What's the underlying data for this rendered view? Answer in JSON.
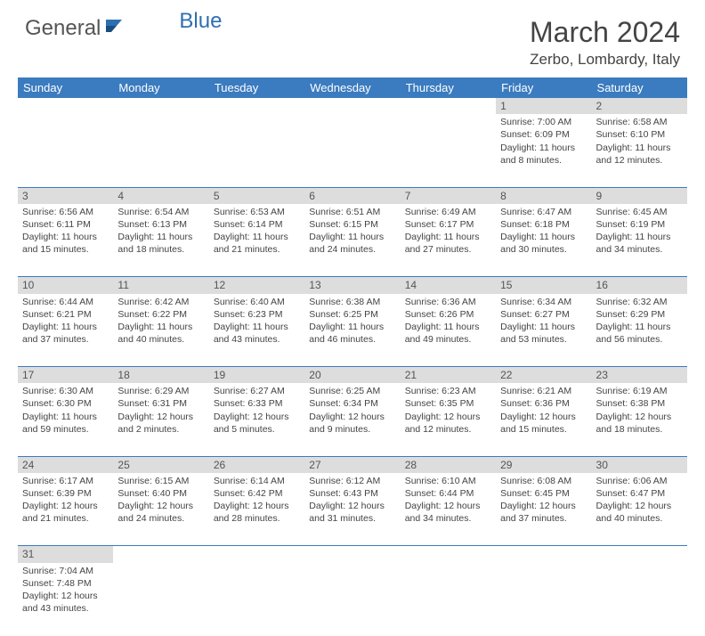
{
  "brand": {
    "name1": "General",
    "name2": "Blue"
  },
  "title": "March 2024",
  "location": "Zerbo, Lombardy, Italy",
  "colors": {
    "header_bg": "#3b7bbf",
    "header_text": "#ffffff",
    "daynum_bg": "#dddddd",
    "border": "#3b7bbf",
    "text": "#444444"
  },
  "weekdays": [
    "Sunday",
    "Monday",
    "Tuesday",
    "Wednesday",
    "Thursday",
    "Friday",
    "Saturday"
  ],
  "cells": {
    "1": {
      "sunrise": "7:00 AM",
      "sunset": "6:09 PM",
      "daylight": "11 hours and 8 minutes."
    },
    "2": {
      "sunrise": "6:58 AM",
      "sunset": "6:10 PM",
      "daylight": "11 hours and 12 minutes."
    },
    "3": {
      "sunrise": "6:56 AM",
      "sunset": "6:11 PM",
      "daylight": "11 hours and 15 minutes."
    },
    "4": {
      "sunrise": "6:54 AM",
      "sunset": "6:13 PM",
      "daylight": "11 hours and 18 minutes."
    },
    "5": {
      "sunrise": "6:53 AM",
      "sunset": "6:14 PM",
      "daylight": "11 hours and 21 minutes."
    },
    "6": {
      "sunrise": "6:51 AM",
      "sunset": "6:15 PM",
      "daylight": "11 hours and 24 minutes."
    },
    "7": {
      "sunrise": "6:49 AM",
      "sunset": "6:17 PM",
      "daylight": "11 hours and 27 minutes."
    },
    "8": {
      "sunrise": "6:47 AM",
      "sunset": "6:18 PM",
      "daylight": "11 hours and 30 minutes."
    },
    "9": {
      "sunrise": "6:45 AM",
      "sunset": "6:19 PM",
      "daylight": "11 hours and 34 minutes."
    },
    "10": {
      "sunrise": "6:44 AM",
      "sunset": "6:21 PM",
      "daylight": "11 hours and 37 minutes."
    },
    "11": {
      "sunrise": "6:42 AM",
      "sunset": "6:22 PM",
      "daylight": "11 hours and 40 minutes."
    },
    "12": {
      "sunrise": "6:40 AM",
      "sunset": "6:23 PM",
      "daylight": "11 hours and 43 minutes."
    },
    "13": {
      "sunrise": "6:38 AM",
      "sunset": "6:25 PM",
      "daylight": "11 hours and 46 minutes."
    },
    "14": {
      "sunrise": "6:36 AM",
      "sunset": "6:26 PM",
      "daylight": "11 hours and 49 minutes."
    },
    "15": {
      "sunrise": "6:34 AM",
      "sunset": "6:27 PM",
      "daylight": "11 hours and 53 minutes."
    },
    "16": {
      "sunrise": "6:32 AM",
      "sunset": "6:29 PM",
      "daylight": "11 hours and 56 minutes."
    },
    "17": {
      "sunrise": "6:30 AM",
      "sunset": "6:30 PM",
      "daylight": "11 hours and 59 minutes."
    },
    "18": {
      "sunrise": "6:29 AM",
      "sunset": "6:31 PM",
      "daylight": "12 hours and 2 minutes."
    },
    "19": {
      "sunrise": "6:27 AM",
      "sunset": "6:33 PM",
      "daylight": "12 hours and 5 minutes."
    },
    "20": {
      "sunrise": "6:25 AM",
      "sunset": "6:34 PM",
      "daylight": "12 hours and 9 minutes."
    },
    "21": {
      "sunrise": "6:23 AM",
      "sunset": "6:35 PM",
      "daylight": "12 hours and 12 minutes."
    },
    "22": {
      "sunrise": "6:21 AM",
      "sunset": "6:36 PM",
      "daylight": "12 hours and 15 minutes."
    },
    "23": {
      "sunrise": "6:19 AM",
      "sunset": "6:38 PM",
      "daylight": "12 hours and 18 minutes."
    },
    "24": {
      "sunrise": "6:17 AM",
      "sunset": "6:39 PM",
      "daylight": "12 hours and 21 minutes."
    },
    "25": {
      "sunrise": "6:15 AM",
      "sunset": "6:40 PM",
      "daylight": "12 hours and 24 minutes."
    },
    "26": {
      "sunrise": "6:14 AM",
      "sunset": "6:42 PM",
      "daylight": "12 hours and 28 minutes."
    },
    "27": {
      "sunrise": "6:12 AM",
      "sunset": "6:43 PM",
      "daylight": "12 hours and 31 minutes."
    },
    "28": {
      "sunrise": "6:10 AM",
      "sunset": "6:44 PM",
      "daylight": "12 hours and 34 minutes."
    },
    "29": {
      "sunrise": "6:08 AM",
      "sunset": "6:45 PM",
      "daylight": "12 hours and 37 minutes."
    },
    "30": {
      "sunrise": "6:06 AM",
      "sunset": "6:47 PM",
      "daylight": "12 hours and 40 minutes."
    },
    "31": {
      "sunrise": "7:04 AM",
      "sunset": "7:48 PM",
      "daylight": "12 hours and 43 minutes."
    }
  },
  "layout": [
    [
      null,
      null,
      null,
      null,
      null,
      1,
      2
    ],
    [
      3,
      4,
      5,
      6,
      7,
      8,
      9
    ],
    [
      10,
      11,
      12,
      13,
      14,
      15,
      16
    ],
    [
      17,
      18,
      19,
      20,
      21,
      22,
      23
    ],
    [
      24,
      25,
      26,
      27,
      28,
      29,
      30
    ],
    [
      31,
      null,
      null,
      null,
      null,
      null,
      null
    ]
  ],
  "labels": {
    "sunrise": "Sunrise: ",
    "sunset": "Sunset: ",
    "daylight": "Daylight: "
  }
}
